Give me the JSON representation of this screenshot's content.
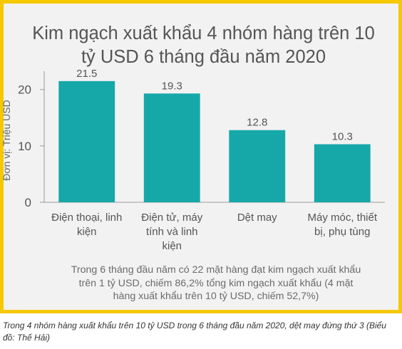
{
  "chart_data": {
    "type": "bar",
    "title_lines": [
      "Kim ngạch xuất khẩu 4 nhóm hàng trên 10",
      "tỷ USD 6 tháng đầu năm 2020"
    ],
    "ylabel": "Đơn vị: Triệu USD",
    "ylim": [
      0,
      23
    ],
    "yticks": [
      0,
      10,
      20
    ],
    "categories": [
      [
        "Điện thoại, linh",
        "kiện"
      ],
      [
        "Điện tử, máy",
        "tính và linh",
        "kiện"
      ],
      [
        "Dệt may"
      ],
      [
        "Máy móc, thiết",
        "bị, phụ tùng"
      ]
    ],
    "values": [
      21.5,
      19.3,
      12.8,
      10.3
    ],
    "data_labels": [
      "21.5",
      "19.3",
      "12.8",
      "10.3"
    ],
    "bar_color": "#16a8a8",
    "grid": false
  },
  "note_lines": [
    "Trong 6 tháng đầu năm có 22 mặt hàng đạt kim ngạch xuất khẩu",
    "trên 1 tỷ USD, chiếm 86,2% tổng kim ngạch xuất khẩu (4 mặt",
    "hàng xuất khẩu trên 10 tỷ USD, chiếm 52,7%)"
  ],
  "caption": "Trong 4 nhóm hàng xuất khẩu trên 10 tỷ USD trong 6 tháng đầu năm 2020, dệt may đứng thứ 3 (Biểu đồ: Thế Hải)",
  "colors": {
    "frame_border": "#f5c800",
    "panel_background": "#f2f2f2",
    "text": "#555555"
  }
}
